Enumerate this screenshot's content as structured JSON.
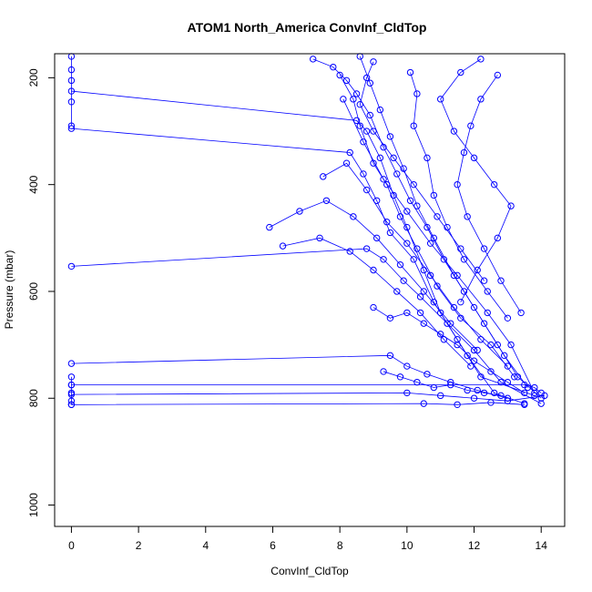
{
  "chart_data": {
    "type": "line",
    "title": "ATOM1 North_America ConvInf_CldTop",
    "xlabel": "ConvInf_CldTop",
    "ylabel": "Pressure (mbar)",
    "xlim": [
      -0.5,
      14.7
    ],
    "ylim": [
      1040,
      155
    ],
    "y_reversed": true,
    "grid": false,
    "x_ticks": [
      0,
      2,
      4,
      6,
      8,
      10,
      12,
      14
    ],
    "y_ticks": [
      200,
      400,
      600,
      800,
      1000
    ],
    "color": "#0000ff",
    "marker": "open-circle",
    "series": [
      {
        "points": [
          [
            0,
            225
          ],
          [
            8.5,
            280
          ],
          [
            8.8,
            300
          ],
          [
            9.2,
            350
          ],
          [
            9.6,
            420
          ],
          [
            10.0,
            480
          ],
          [
            10.5,
            560
          ],
          [
            11.0,
            640
          ],
          [
            11.8,
            720
          ],
          [
            12.6,
            790
          ],
          [
            13.5,
            810
          ]
        ]
      },
      {
        "points": [
          [
            0,
            295
          ],
          [
            8.3,
            340
          ],
          [
            8.7,
            380
          ],
          [
            9.1,
            430
          ],
          [
            9.5,
            490
          ],
          [
            10.2,
            540
          ],
          [
            10.8,
            620
          ],
          [
            11.5,
            690
          ],
          [
            12.2,
            760
          ],
          [
            13.8,
            795
          ]
        ]
      },
      {
        "points": [
          [
            0,
            553
          ],
          [
            8.8,
            520
          ],
          [
            9.3,
            540
          ],
          [
            9.9,
            580
          ],
          [
            10.4,
            610
          ],
          [
            11.2,
            660
          ],
          [
            12.0,
            710
          ],
          [
            12.8,
            770
          ],
          [
            14.0,
            810
          ]
        ]
      },
      {
        "points": [
          [
            0,
            735
          ],
          [
            9.5,
            720
          ],
          [
            10.0,
            740
          ],
          [
            10.6,
            755
          ],
          [
            11.3,
            770
          ],
          [
            12.1,
            785
          ],
          [
            13.0,
            800
          ]
        ]
      },
      {
        "points": [
          [
            0,
            775
          ],
          [
            13.5,
            775
          ],
          [
            13.8,
            780
          ],
          [
            14.0,
            790
          ]
        ]
      },
      {
        "points": [
          [
            0,
            793
          ],
          [
            10.0,
            790
          ],
          [
            11.0,
            795
          ],
          [
            12.0,
            800
          ],
          [
            13.0,
            805
          ],
          [
            14.1,
            795
          ]
        ]
      },
      {
        "points": [
          [
            0,
            812
          ],
          [
            10.5,
            810
          ],
          [
            11.5,
            812
          ],
          [
            12.5,
            808
          ],
          [
            13.5,
            812
          ]
        ]
      },
      {
        "points": [
          [
            7.2,
            165
          ],
          [
            7.8,
            180
          ],
          [
            8.2,
            205
          ],
          [
            8.5,
            230
          ],
          [
            8.9,
            270
          ],
          [
            9.3,
            330
          ],
          [
            9.7,
            380
          ],
          [
            10.1,
            430
          ],
          [
            10.6,
            480
          ],
          [
            11.1,
            540
          ],
          [
            11.7,
            600
          ],
          [
            12.3,
            660
          ],
          [
            12.9,
            720
          ],
          [
            13.6,
            780
          ]
        ]
      },
      {
        "points": [
          [
            8.0,
            195
          ],
          [
            8.4,
            240
          ],
          [
            8.6,
            290
          ],
          [
            9.0,
            360
          ],
          [
            9.4,
            400
          ],
          [
            9.8,
            460
          ],
          [
            10.3,
            520
          ],
          [
            10.9,
            590
          ],
          [
            11.6,
            650
          ],
          [
            12.5,
            700
          ],
          [
            13.2,
            760
          ]
        ]
      },
      {
        "points": [
          [
            7.5,
            385
          ],
          [
            8.2,
            360
          ],
          [
            8.8,
            410
          ],
          [
            9.4,
            470
          ],
          [
            10.0,
            510
          ],
          [
            10.7,
            570
          ],
          [
            11.4,
            630
          ],
          [
            12.2,
            690
          ],
          [
            13.0,
            740
          ]
        ]
      },
      {
        "points": [
          [
            5.9,
            480
          ],
          [
            6.8,
            450
          ],
          [
            7.6,
            430
          ],
          [
            8.4,
            460
          ],
          [
            9.1,
            500
          ],
          [
            9.8,
            550
          ],
          [
            10.5,
            600
          ],
          [
            11.3,
            660
          ],
          [
            12.1,
            710
          ]
        ]
      },
      {
        "points": [
          [
            6.3,
            515
          ],
          [
            7.4,
            500
          ],
          [
            8.3,
            525
          ],
          [
            9.0,
            560
          ],
          [
            9.7,
            600
          ],
          [
            10.4,
            640
          ],
          [
            11.1,
            690
          ],
          [
            11.9,
            740
          ]
        ]
      },
      {
        "points": [
          [
            10.1,
            190
          ],
          [
            10.3,
            230
          ],
          [
            10.2,
            290
          ],
          [
            10.6,
            350
          ],
          [
            10.8,
            420
          ],
          [
            11.2,
            480
          ],
          [
            11.7,
            540
          ],
          [
            12.4,
            600
          ],
          [
            13.0,
            650
          ]
        ]
      },
      {
        "points": [
          [
            12.7,
            195
          ],
          [
            12.2,
            240
          ],
          [
            11.9,
            290
          ],
          [
            11.7,
            340
          ],
          [
            11.5,
            400
          ],
          [
            11.8,
            460
          ],
          [
            12.3,
            520
          ],
          [
            12.8,
            580
          ],
          [
            13.4,
            640
          ]
        ]
      },
      {
        "points": [
          [
            12.2,
            165
          ],
          [
            11.6,
            190
          ],
          [
            11.0,
            240
          ],
          [
            11.4,
            300
          ],
          [
            12.0,
            350
          ],
          [
            12.6,
            400
          ],
          [
            13.1,
            440
          ],
          [
            12.7,
            500
          ],
          [
            12.1,
            560
          ],
          [
            11.6,
            620
          ]
        ]
      },
      {
        "points": [
          [
            8.6,
            160
          ],
          [
            8.9,
            210
          ],
          [
            9.2,
            260
          ],
          [
            9.5,
            310
          ],
          [
            9.9,
            370
          ],
          [
            10.3,
            440
          ],
          [
            10.8,
            500
          ],
          [
            11.4,
            570
          ],
          [
            12.0,
            630
          ],
          [
            12.7,
            700
          ],
          [
            13.3,
            760
          ],
          [
            14.0,
            800
          ]
        ]
      },
      {
        "points": [
          [
            8.1,
            240
          ],
          [
            8.7,
            320
          ],
          [
            9.3,
            390
          ],
          [
            10.0,
            450
          ],
          [
            10.7,
            510
          ],
          [
            11.5,
            570
          ],
          [
            12.4,
            640
          ],
          [
            13.1,
            700
          ],
          [
            13.8,
            790
          ]
        ]
      },
      {
        "points": [
          [
            9.0,
            170
          ],
          [
            8.8,
            200
          ],
          [
            8.6,
            250
          ],
          [
            9.0,
            300
          ],
          [
            9.6,
            350
          ],
          [
            10.2,
            400
          ],
          [
            10.9,
            460
          ],
          [
            11.6,
            520
          ],
          [
            12.3,
            580
          ]
        ]
      },
      {
        "points": [
          [
            9.0,
            630
          ],
          [
            9.5,
            650
          ],
          [
            10.0,
            640
          ],
          [
            10.5,
            660
          ],
          [
            11.0,
            680
          ],
          [
            11.5,
            700
          ],
          [
            12.0,
            730
          ],
          [
            12.5,
            750
          ],
          [
            13.0,
            770
          ],
          [
            13.5,
            790
          ]
        ]
      },
      {
        "points": [
          [
            9.3,
            750
          ],
          [
            9.8,
            760
          ],
          [
            10.3,
            770
          ],
          [
            10.8,
            780
          ],
          [
            11.3,
            775
          ],
          [
            11.8,
            785
          ],
          [
            12.3,
            790
          ],
          [
            12.8,
            795
          ]
        ]
      },
      {
        "points": [
          [
            0,
            160
          ],
          [
            0,
            185
          ],
          [
            0,
            205
          ],
          [
            0,
            245
          ],
          [
            0,
            290
          ]
        ]
      },
      {
        "points": [
          [
            0,
            760
          ],
          [
            0,
            775
          ],
          [
            0,
            790
          ],
          [
            0,
            805
          ],
          [
            0,
            812
          ]
        ]
      }
    ]
  }
}
